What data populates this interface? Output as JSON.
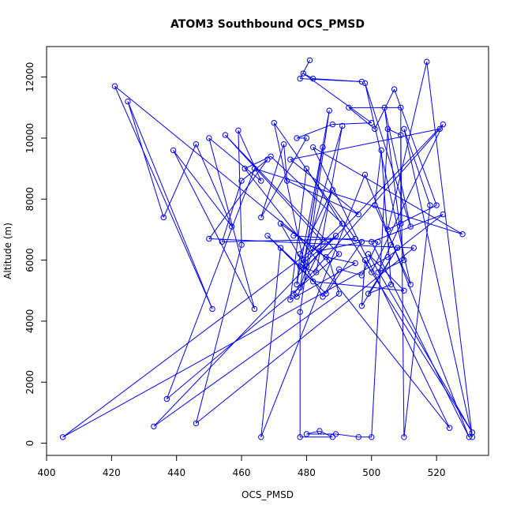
{
  "chart_data": {
    "type": "scatter",
    "title": "ATOM3 Southbound OCS_PMSD",
    "xlabel": "OCS_PMSD",
    "ylabel": "Altitude (m)",
    "xlim": [
      400,
      536
    ],
    "ylim": [
      -400,
      13000
    ],
    "xticks": [
      400,
      420,
      440,
      460,
      480,
      500,
      520
    ],
    "yticks": [
      0,
      2000,
      4000,
      6000,
      8000,
      10000,
      12000
    ],
    "grid": false,
    "marker": "open-circle",
    "connected": true,
    "color": "#0000ff",
    "series": [
      {
        "points": [
          [
            481,
            12550
          ],
          [
            478,
            11950
          ],
          [
            497,
            11850
          ],
          [
            482,
            11950
          ],
          [
            479,
            12120
          ],
          [
            500,
            10500
          ],
          [
            488,
            10450
          ],
          [
            477,
            10000
          ],
          [
            480,
            10000
          ],
          [
            466,
            7400
          ],
          [
            473,
            9800
          ],
          [
            474,
            8600
          ],
          [
            496,
            7500
          ],
          [
            475,
            9300
          ],
          [
            521,
            10300
          ],
          [
            476,
            4900
          ],
          [
            477,
            4800
          ],
          [
            484,
            6300
          ],
          [
            497,
            6600
          ],
          [
            486,
            4900
          ],
          [
            468,
            6800
          ],
          [
            478,
            5800
          ],
          [
            483,
            5600
          ],
          [
            491,
            10400
          ],
          [
            479,
            5900
          ],
          [
            489,
            6800
          ],
          [
            480,
            5800
          ],
          [
            479,
            5700
          ],
          [
            485,
            9700
          ],
          [
            478,
            5100
          ],
          [
            488,
            8300
          ],
          [
            478,
            6200
          ],
          [
            477,
            5200
          ],
          [
            487,
            10900
          ],
          [
            478,
            4300
          ],
          [
            478,
            200
          ],
          [
            488,
            200
          ],
          [
            484,
            400
          ],
          [
            480,
            300
          ],
          [
            489,
            300
          ],
          [
            496,
            200
          ],
          [
            500,
            200
          ],
          [
            505,
            10300
          ],
          [
            509,
            10100
          ],
          [
            510,
            200
          ],
          [
            518,
            7800
          ],
          [
            510,
            10300
          ],
          [
            531,
            200
          ],
          [
            517,
            12500
          ],
          [
            505,
            7000
          ],
          [
            520,
            7800
          ],
          [
            507,
            11600
          ],
          [
            501,
            10300
          ],
          [
            493,
            11000
          ],
          [
            509,
            11000
          ],
          [
            509,
            7200
          ],
          [
            506,
            6500
          ],
          [
            502,
            5600
          ],
          [
            510,
            6000
          ],
          [
            504,
            11000
          ],
          [
            512,
            7100
          ],
          [
            498,
            11800
          ],
          [
            512,
            5200
          ],
          [
            501,
            7800
          ],
          [
            503,
            9600
          ],
          [
            506,
            5200
          ],
          [
            499,
            4900
          ],
          [
            508,
            6400
          ],
          [
            497,
            4500
          ],
          [
            498,
            6000
          ],
          [
            500,
            5600
          ],
          [
            522,
            10450
          ],
          [
            433,
            550
          ],
          [
            490,
            4900
          ],
          [
            487,
            6000
          ],
          [
            482,
            6400
          ],
          [
            421,
            11700
          ],
          [
            451,
            4400
          ],
          [
            425,
            11200
          ],
          [
            436,
            7400
          ],
          [
            446,
            9800
          ],
          [
            457,
            7100
          ],
          [
            439,
            9600
          ],
          [
            464,
            4400
          ],
          [
            450,
            10000
          ],
          [
            466,
            8600
          ],
          [
            459,
            10250
          ],
          [
            460,
            6500
          ],
          [
            446,
            650
          ],
          [
            513,
            6400
          ],
          [
            450,
            6700
          ],
          [
            468,
            9300
          ],
          [
            460,
            8600
          ],
          [
            454,
            6600
          ],
          [
            495,
            6700
          ],
          [
            470,
            10500
          ],
          [
            479,
            6000
          ],
          [
            491,
            7200
          ],
          [
            469,
            9400
          ],
          [
            461,
            9000
          ],
          [
            524,
            500
          ],
          [
            482,
            9700
          ],
          [
            528,
            6850
          ],
          [
            464,
            9000
          ],
          [
            437,
            1450
          ],
          [
            490,
            6200
          ],
          [
            455,
            10100
          ],
          [
            485,
            6600
          ],
          [
            405,
            200
          ],
          [
            505,
            6100
          ],
          [
            522,
            7500
          ],
          [
            500,
            6600
          ],
          [
            530,
            200
          ],
          [
            498,
            8800
          ],
          [
            466,
            200
          ],
          [
            472,
            6400
          ],
          [
            482,
            5300
          ],
          [
            510,
            5000
          ],
          [
            499,
            6200
          ],
          [
            531,
            350
          ],
          [
            480,
            9000
          ],
          [
            475,
            4700
          ],
          [
            495,
            5900
          ],
          [
            486,
            6100
          ],
          [
            472,
            7200
          ],
          [
            485,
            4800
          ],
          [
            490,
            5700
          ],
          [
            497,
            5500
          ],
          [
            502,
            6600
          ],
          [
            476,
            6800
          ]
        ]
      }
    ]
  }
}
